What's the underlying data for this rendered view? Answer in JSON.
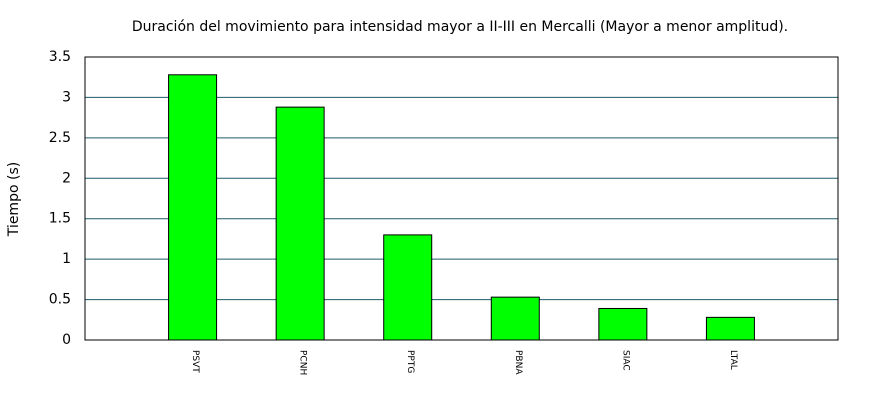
{
  "chart_data": {
    "type": "bar",
    "title": "Duración del movimiento para intensidad mayor a II-III en Mercalli (Mayor a menor amplitud).",
    "y_label": "Tiempo (s)",
    "categories": [
      "PSVT",
      "PCNH",
      "PPTG",
      "PBNA",
      "SIAC",
      "LTAL"
    ],
    "values": [
      3.28,
      2.88,
      1.3,
      0.53,
      0.39,
      0.28
    ],
    "color": "#00ff00",
    "ylim": [
      0,
      3.5
    ],
    "yticks": [
      0,
      0.5,
      1,
      1.5,
      2,
      2.5,
      3,
      3.5
    ],
    "grid": true
  }
}
